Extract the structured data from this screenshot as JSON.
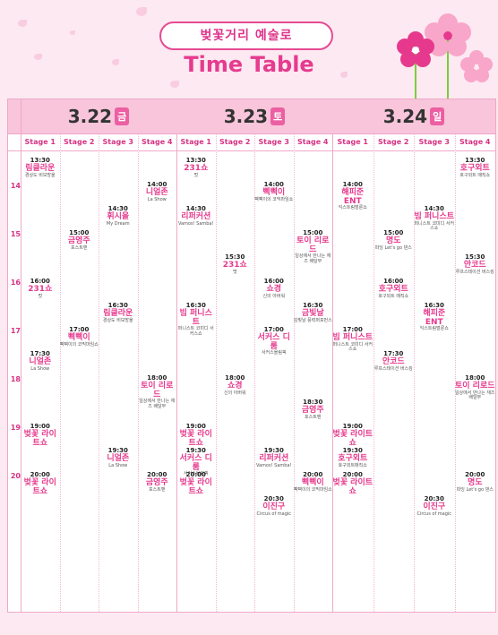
{
  "header": {
    "pill": "벚꽃거리 예술로",
    "title": "Time Table"
  },
  "hours": [
    "14",
    "15",
    "16",
    "17",
    "18",
    "19",
    "20"
  ],
  "stages": [
    "Stage 1",
    "Stage 2",
    "Stage 3",
    "Stage 4"
  ],
  "days": [
    {
      "date": "3.22",
      "dow": "금"
    },
    {
      "date": "3.23",
      "dow": "토"
    },
    {
      "date": "3.24",
      "dow": "일"
    }
  ],
  "events": [
    {
      "d": 0,
      "s": 0,
      "t": "13:30",
      "n": "림클라운",
      "sub": "경상도 비보방울"
    },
    {
      "d": 0,
      "s": 0,
      "t": "16:00",
      "n": "231쇼",
      "sub": "멋"
    },
    {
      "d": 0,
      "s": 0,
      "t": "17:30",
      "n": "니얼존",
      "sub": "La Show"
    },
    {
      "d": 0,
      "s": 0,
      "t": "19:00",
      "n": "벚꽃 라이트쇼",
      "sub": ""
    },
    {
      "d": 0,
      "s": 0,
      "t": "20:00",
      "n": "벚꽃 라이트쇼",
      "sub": ""
    },
    {
      "d": 0,
      "s": 1,
      "t": "15:00",
      "n": "금영주",
      "sub": "포스트맨"
    },
    {
      "d": 0,
      "s": 1,
      "t": "17:00",
      "n": "삑삑이",
      "sub": "삑삑이의 코믹마임쇼"
    },
    {
      "d": 0,
      "s": 2,
      "t": "14:30",
      "n": "휘시올",
      "sub": "My Dream"
    },
    {
      "d": 0,
      "s": 2,
      "t": "16:30",
      "n": "림클라운",
      "sub": "경상도 비보방울"
    },
    {
      "d": 0,
      "s": 2,
      "t": "19:30",
      "n": "니얼존",
      "sub": "La Show"
    },
    {
      "d": 0,
      "s": 3,
      "t": "14:00",
      "n": "니얼존",
      "sub": "La Show"
    },
    {
      "d": 0,
      "s": 3,
      "t": "18:00",
      "n": "토이 리로드",
      "sub": "일상에서 만나는 재즈 배달부"
    },
    {
      "d": 0,
      "s": 3,
      "t": "20:00",
      "n": "금영주",
      "sub": "포스트맨"
    },
    {
      "d": 1,
      "s": 0,
      "t": "13:30",
      "n": "231쇼",
      "sub": "멋"
    },
    {
      "d": 1,
      "s": 0,
      "t": "14:30",
      "n": "리퍼커션",
      "sub": "Vamos! Samba!"
    },
    {
      "d": 1,
      "s": 0,
      "t": "16:30",
      "n": "빔 퍼니스트",
      "sub": "퍼니스트 코미디 서커스쇼"
    },
    {
      "d": 1,
      "s": 0,
      "t": "19:00",
      "n": "벚꽃 라이트쇼",
      "sub": ""
    },
    {
      "d": 1,
      "s": 0,
      "t": "19:30",
      "n": "서커스 디룸",
      "sub": "서커스올림픽"
    },
    {
      "d": 1,
      "s": 0,
      "t": "20:00",
      "n": "벚꽃 라이트쇼",
      "sub": ""
    },
    {
      "d": 1,
      "s": 1,
      "t": "15:30",
      "n": "231쇼",
      "sub": "멋"
    },
    {
      "d": 1,
      "s": 1,
      "t": "18:00",
      "n": "쇼경",
      "sub": "신의 아버워"
    },
    {
      "d": 1,
      "s": 2,
      "t": "14:00",
      "n": "삑삑이",
      "sub": "삑삑이의 코믹마임쇼"
    },
    {
      "d": 1,
      "s": 2,
      "t": "16:00",
      "n": "쇼경",
      "sub": "신의 아버워"
    },
    {
      "d": 1,
      "s": 2,
      "t": "17:00",
      "n": "서커스 디룸",
      "sub": "서커스올림픽"
    },
    {
      "d": 1,
      "s": 2,
      "t": "19:30",
      "n": "리퍼커션",
      "sub": "Vamos! Samba!"
    },
    {
      "d": 1,
      "s": 2,
      "t": "20:30",
      "n": "이진구",
      "sub": "Circus of magic"
    },
    {
      "d": 1,
      "s": 3,
      "t": "15:00",
      "n": "토이 리로드",
      "sub": "일상에서 만나는 재즈 배달부"
    },
    {
      "d": 1,
      "s": 3,
      "t": "16:30",
      "n": "금빛날",
      "sub": "김빛날 풍력퍼포먼스"
    },
    {
      "d": 1,
      "s": 3,
      "t": "18:30",
      "n": "금영주",
      "sub": "포스트맨"
    },
    {
      "d": 1,
      "s": 3,
      "t": "20:00",
      "n": "삑삑이",
      "sub": "삑삑이의 코믹마임쇼"
    },
    {
      "d": 2,
      "s": 0,
      "t": "14:00",
      "n": "해피준 ENT",
      "sub": "익스트림벌룬쇼"
    },
    {
      "d": 2,
      "s": 0,
      "t": "17:00",
      "n": "빔 퍼니스트",
      "sub": "퍼니스트 코미디 서커스쇼"
    },
    {
      "d": 2,
      "s": 0,
      "t": "19:00",
      "n": "벚꽃 라이트쇼",
      "sub": ""
    },
    {
      "d": 2,
      "s": 0,
      "t": "19:30",
      "n": "호구외트",
      "sub": "호구외트매직쇼"
    },
    {
      "d": 2,
      "s": 0,
      "t": "20:00",
      "n": "벚꽃 라이트쇼",
      "sub": ""
    },
    {
      "d": 2,
      "s": 1,
      "t": "15:00",
      "n": "명도",
      "sub": "파잉 Let's go 댄스"
    },
    {
      "d": 2,
      "s": 1,
      "t": "16:00",
      "n": "호구외트",
      "sub": "호구외트 매직쇼"
    },
    {
      "d": 2,
      "s": 1,
      "t": "17:30",
      "n": "안코드",
      "sub": "루프스테이션 버스킹"
    },
    {
      "d": 2,
      "s": 2,
      "t": "14:30",
      "n": "빔 퍼니스트",
      "sub": "퍼니스트 코미디 서커스쇼"
    },
    {
      "d": 2,
      "s": 2,
      "t": "16:30",
      "n": "해피준 ENT",
      "sub": "익스트림벌룬쇼"
    },
    {
      "d": 2,
      "s": 2,
      "t": "20:30",
      "n": "이진구",
      "sub": "Circus of magic"
    },
    {
      "d": 2,
      "s": 3,
      "t": "13:30",
      "n": "호구외트",
      "sub": "호구외트 매직쇼"
    },
    {
      "d": 2,
      "s": 3,
      "t": "15:30",
      "n": "안코드",
      "sub": "루프스테이션 버스킹"
    },
    {
      "d": 2,
      "s": 3,
      "t": "18:00",
      "n": "토이 리로드",
      "sub": "일상에서 만나는 재즈 배달부"
    },
    {
      "d": 2,
      "s": 3,
      "t": "20:00",
      "n": "명도",
      "sub": "파잉 Let's go 댄스"
    }
  ]
}
